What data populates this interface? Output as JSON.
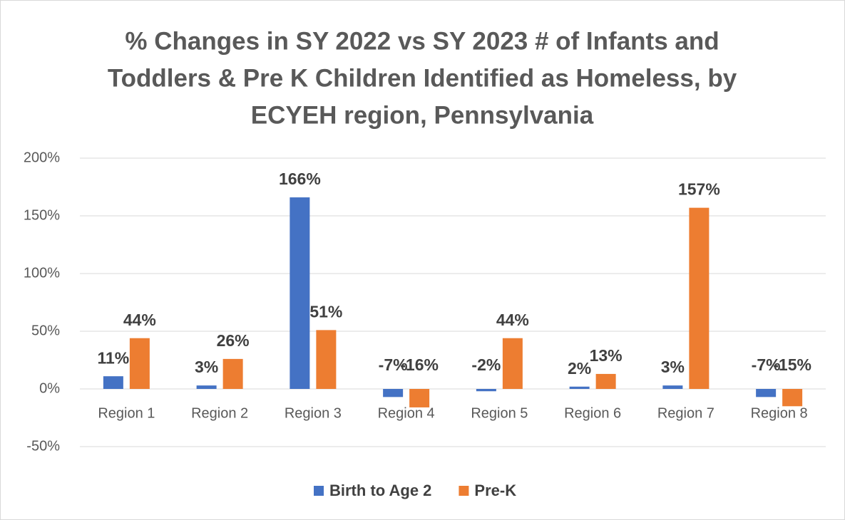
{
  "chart_data": {
    "type": "bar",
    "title": [
      "% Changes in SY 2022 vs SY 2023 # of Infants and",
      "Toddlers & Pre K Children Identified as Homeless, by",
      "ECYEH region, Pennsylvania"
    ],
    "categories": [
      "Region 1",
      "Region 2",
      "Region 3",
      "Region 4",
      "Region 5",
      "Region 6",
      "Region 7",
      "Region 8"
    ],
    "series": [
      {
        "name": "Birth to Age 2",
        "color": "#4472c4",
        "values": [
          11,
          3,
          166,
          -7,
          -2,
          2,
          3,
          -7
        ],
        "value_labels": [
          "11%",
          "3%",
          "166%",
          "-7%",
          "-2%",
          "2%",
          "3%",
          "-7%"
        ]
      },
      {
        "name": "Pre-K",
        "color": "#ed7d31",
        "values": [
          44,
          26,
          51,
          -16,
          44,
          13,
          157,
          -15
        ],
        "value_labels": [
          "44%",
          "26%",
          "51%",
          "-16%",
          "44%",
          "13%",
          "157%",
          "-15%"
        ]
      }
    ],
    "ylim": [
      -50,
      200
    ],
    "yticks": [
      {
        "value": -50,
        "label": "-50%"
      },
      {
        "value": 0,
        "label": "0%"
      },
      {
        "value": 50,
        "label": "50%"
      },
      {
        "value": 100,
        "label": "100%"
      },
      {
        "value": 150,
        "label": "150%"
      },
      {
        "value": 200,
        "label": "200%"
      }
    ],
    "grid": true,
    "legend": "bottom"
  }
}
